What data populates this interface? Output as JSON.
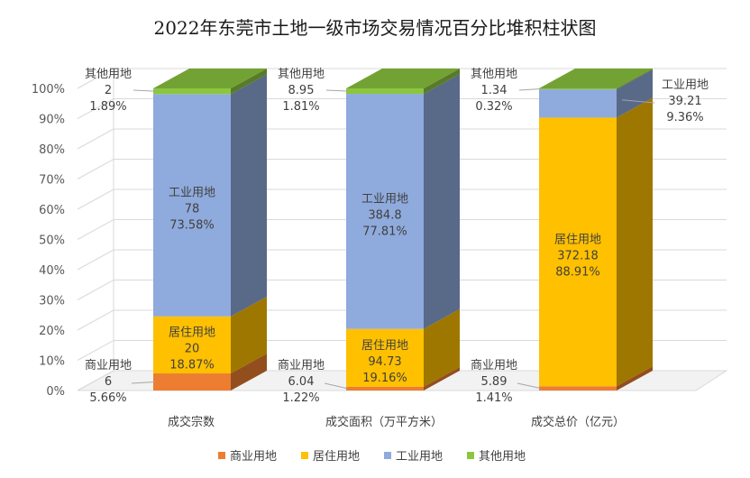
{
  "title": "2022年东莞市土地一级市场交易情况百分比堆积柱状图",
  "colors": {
    "商业用地": "#ED7D31",
    "居住用地": "#FFC000",
    "工业用地": "#8FAADC",
    "其他用地": "#8CC63F"
  },
  "chart_data": {
    "type": "bar",
    "stacked": "percent",
    "title": "2022年东莞市土地一级市场交易情况百分比堆积柱状图",
    "categories": [
      "成交宗数",
      "成交面积（万平方米）",
      "成交总价（亿元）"
    ],
    "ylim": [
      0,
      100
    ],
    "yticks": [
      "0%",
      "10%",
      "20%",
      "30%",
      "40%",
      "50%",
      "60%",
      "70%",
      "80%",
      "90%",
      "100%"
    ],
    "grid": true,
    "legend_position": "bottom",
    "series": [
      {
        "name": "商业用地",
        "values": [
          6,
          6.04,
          5.89
        ],
        "percents": [
          "5.66%",
          "1.22%",
          "1.41%"
        ]
      },
      {
        "name": "居住用地",
        "values": [
          20,
          94.73,
          372.18
        ],
        "percents": [
          "18.87%",
          "19.16%",
          "88.91%"
        ]
      },
      {
        "name": "工业用地",
        "values": [
          78,
          384.8,
          39.21
        ],
        "percents": [
          "73.58%",
          "77.81%",
          "9.36%"
        ]
      },
      {
        "name": "其他用地",
        "values": [
          2,
          8.95,
          1.34
        ],
        "percents": [
          "1.89%",
          "1.81%",
          "0.32%"
        ]
      }
    ]
  }
}
